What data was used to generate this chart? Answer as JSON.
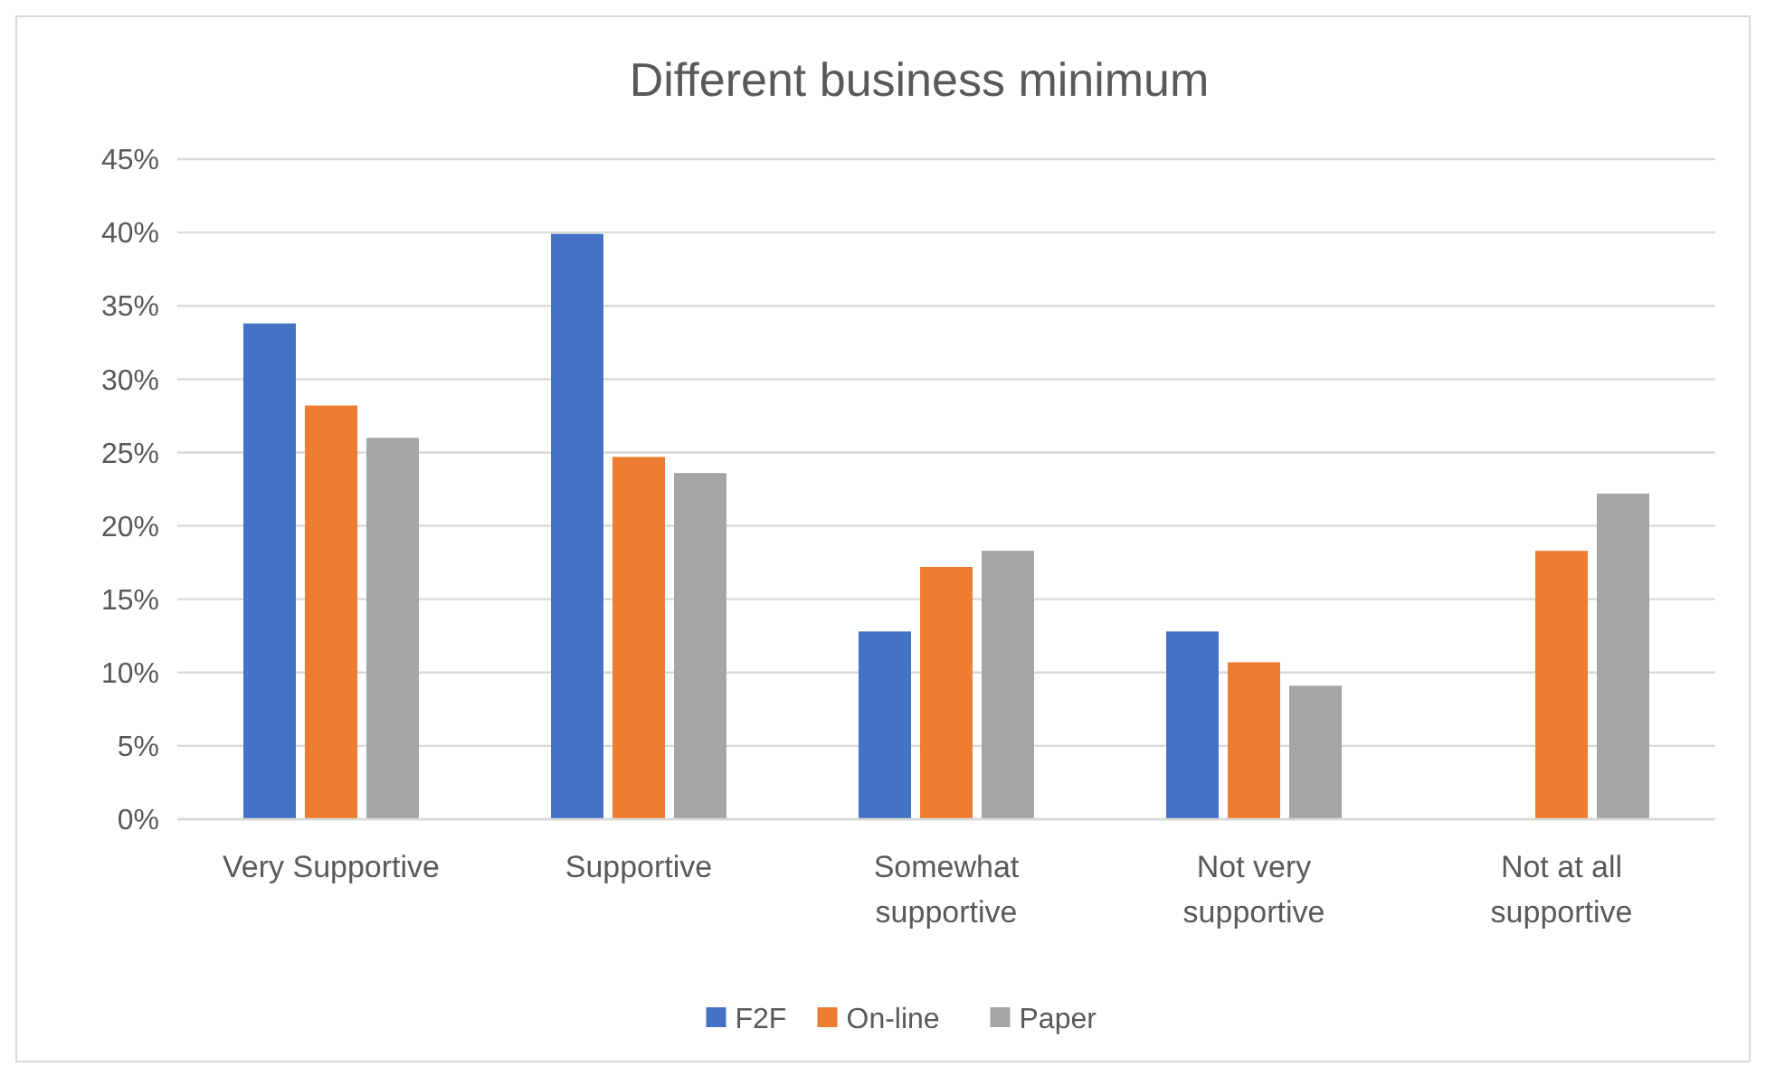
{
  "chart_data": {
    "type": "bar",
    "title": "Different business minimum",
    "categories": [
      "Very Supportive",
      "Supportive",
      "Somewhat supportive",
      "Not very supportive",
      "Not at all supportive"
    ],
    "series": [
      {
        "name": "F2F",
        "color": "#4472c4",
        "values": [
          33.8,
          39.9,
          12.8,
          12.8,
          0
        ]
      },
      {
        "name": "On-line",
        "color": "#ed7d31",
        "values": [
          28.2,
          24.7,
          17.2,
          10.7,
          18.3
        ]
      },
      {
        "name": "Paper",
        "color": "#a5a5a5",
        "values": [
          26.0,
          23.6,
          18.3,
          9.1,
          22.2
        ]
      }
    ],
    "ylim": [
      0,
      45
    ],
    "yticks": [
      {
        "value": 0,
        "label": "0%"
      },
      {
        "value": 5,
        "label": "5%"
      },
      {
        "value": 10,
        "label": "10%"
      },
      {
        "value": 15,
        "label": "15%"
      },
      {
        "value": 20,
        "label": "20%"
      },
      {
        "value": 25,
        "label": "25%"
      },
      {
        "value": 30,
        "label": "30%"
      },
      {
        "value": 35,
        "label": "35%"
      },
      {
        "value": 40,
        "label": "40%"
      },
      {
        "value": 45,
        "label": "45%"
      }
    ],
    "grid": "y",
    "legend": "bottom"
  }
}
